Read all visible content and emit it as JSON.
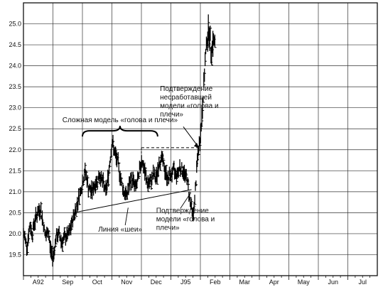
{
  "chart_data": {
    "type": "ohlc",
    "title": "",
    "xlabel": "",
    "ylabel": "",
    "ylim": [
      19.0,
      25.5
    ],
    "grid": true,
    "x_tick_labels": [
      "A92",
      "Sep",
      "Oct",
      "Nov",
      "Dec",
      "J95",
      "Feb",
      "Mar",
      "Apr",
      "May",
      "Jun",
      "Jul"
    ],
    "y_tick_labels": [
      "19.5",
      "20.0",
      "20.5",
      "21.0",
      "21.5",
      "22.0",
      "22.5",
      "23.0",
      "23.5",
      "24.0",
      "24.5",
      "25.0"
    ],
    "y_tick_values": [
      19.5,
      20.0,
      20.5,
      21.0,
      21.5,
      22.0,
      22.5,
      23.0,
      23.5,
      24.0,
      24.5,
      25.0
    ],
    "price_path": [
      {
        "t": 0.0,
        "p": 20.0
      },
      {
        "t": 0.05,
        "p": 19.9
      },
      {
        "t": 0.12,
        "p": 19.7
      },
      {
        "t": 0.22,
        "p": 20.2
      },
      {
        "t": 0.3,
        "p": 20.0
      },
      {
        "t": 0.38,
        "p": 20.3
      },
      {
        "t": 0.48,
        "p": 20.5
      },
      {
        "t": 0.58,
        "p": 20.6
      },
      {
        "t": 0.68,
        "p": 20.2
      },
      {
        "t": 0.76,
        "p": 19.9
      },
      {
        "t": 0.84,
        "p": 20.1
      },
      {
        "t": 0.9,
        "p": 19.7
      },
      {
        "t": 1.0,
        "p": 19.4
      },
      {
        "t": 1.1,
        "p": 19.9
      },
      {
        "t": 1.2,
        "p": 20.0
      },
      {
        "t": 1.3,
        "p": 19.8
      },
      {
        "t": 1.4,
        "p": 19.9
      },
      {
        "t": 1.55,
        "p": 20.0
      },
      {
        "t": 1.7,
        "p": 20.4
      },
      {
        "t": 1.85,
        "p": 20.8
      },
      {
        "t": 2.0,
        "p": 21.2
      },
      {
        "t": 2.1,
        "p": 21.5
      },
      {
        "t": 2.2,
        "p": 21.1
      },
      {
        "t": 2.3,
        "p": 21.0
      },
      {
        "t": 2.45,
        "p": 21.2
      },
      {
        "t": 2.6,
        "p": 21.4
      },
      {
        "t": 2.7,
        "p": 21.2
      },
      {
        "t": 2.8,
        "p": 21.0
      },
      {
        "t": 2.9,
        "p": 21.5
      },
      {
        "t": 3.0,
        "p": 22.2
      },
      {
        "t": 3.1,
        "p": 21.9
      },
      {
        "t": 3.2,
        "p": 21.7
      },
      {
        "t": 3.3,
        "p": 21.3
      },
      {
        "t": 3.4,
        "p": 21.0
      },
      {
        "t": 3.5,
        "p": 20.9
      },
      {
        "t": 3.6,
        "p": 21.2
      },
      {
        "t": 3.7,
        "p": 21.3
      },
      {
        "t": 3.8,
        "p": 21.1
      },
      {
        "t": 3.9,
        "p": 21.3
      },
      {
        "t": 4.0,
        "p": 21.8
      },
      {
        "t": 4.1,
        "p": 21.5
      },
      {
        "t": 4.2,
        "p": 21.2
      },
      {
        "t": 4.3,
        "p": 21.2
      },
      {
        "t": 4.4,
        "p": 21.4
      },
      {
        "t": 4.5,
        "p": 21.3
      },
      {
        "t": 4.6,
        "p": 21.7
      },
      {
        "t": 4.7,
        "p": 21.8
      },
      {
        "t": 4.8,
        "p": 21.5
      },
      {
        "t": 4.9,
        "p": 21.3
      },
      {
        "t": 5.0,
        "p": 21.4
      },
      {
        "t": 5.1,
        "p": 21.5
      },
      {
        "t": 5.2,
        "p": 21.4
      },
      {
        "t": 5.3,
        "p": 21.6
      },
      {
        "t": 5.4,
        "p": 21.5
      },
      {
        "t": 5.55,
        "p": 21.3
      },
      {
        "t": 5.65,
        "p": 20.8
      },
      {
        "t": 5.75,
        "p": 20.4
      },
      {
        "t": 5.82,
        "p": 20.9
      },
      {
        "t": 5.9,
        "p": 21.8
      },
      {
        "t": 5.98,
        "p": 22.2
      },
      {
        "t": 6.05,
        "p": 22.7
      },
      {
        "t": 6.12,
        "p": 23.6
      },
      {
        "t": 6.2,
        "p": 24.5
      },
      {
        "t": 6.28,
        "p": 24.9
      },
      {
        "t": 6.36,
        "p": 24.4
      },
      {
        "t": 6.45,
        "p": 24.6
      },
      {
        "t": 6.5,
        "p": 24.5
      }
    ],
    "neckline": {
      "start": {
        "t": 1.7,
        "p": 20.5
      },
      "end": {
        "t": 5.7,
        "p": 21.05
      }
    },
    "confirmation_level": {
      "p": 22.05,
      "start_t": 4.0,
      "end_t": 6.0
    },
    "annotations": {
      "complex_pattern": "Сложная модель «голова и плечи»",
      "neckline_label": "Линия «шеи»",
      "failed_confirm_lines": [
        "Подтверждение",
        "несработавшей",
        "модели «голова и",
        "плечи»"
      ],
      "confirm_lines": [
        "Подтверждение",
        "модели «голова и",
        "плечи»"
      ]
    }
  }
}
